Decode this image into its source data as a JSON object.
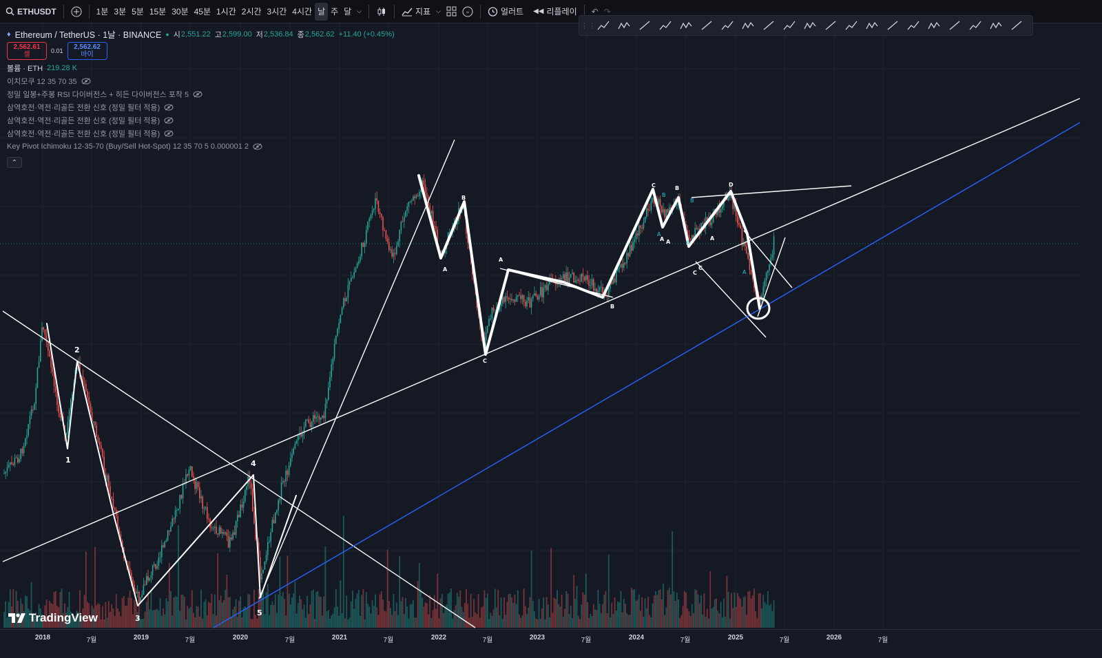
{
  "toolbar": {
    "symbol": "ETHUSDT",
    "intervals": [
      "1분",
      "3분",
      "5분",
      "15분",
      "30분",
      "45분",
      "1시간",
      "2시간",
      "3시간",
      "4시간",
      "날",
      "주",
      "달"
    ],
    "active_interval": "날",
    "indicators_label": "지표",
    "alert_label": "얼러트",
    "replay_label": "리플레이"
  },
  "legend": {
    "title": "Ethereum / TetherUS · 1날 · BINANCE",
    "open_label": "시",
    "open": "2,551.22",
    "high_label": "고",
    "high": "2,599.00",
    "low_label": "저",
    "low": "2,536.84",
    "close_label": "종",
    "close": "2,562.62",
    "change": "+11.40 (+0.45%)",
    "sell_price": "2,562.61",
    "sell_label": "셀",
    "spread": "0.01",
    "buy_price": "2,562.62",
    "buy_label": "바이",
    "volume_label": "볼륨 · ETH",
    "volume_value": "219.28 K",
    "indicators": [
      "이치모쿠 12 35 70 35",
      "정밀 일봉+주봉 RSI 다이버전스 + 히든 다이버전스 포착 5",
      "삼역호전·역전·리골든 전환 신호 (정밀 필터 적용)",
      "삼역호전·역전·리골든 전환 신호 (정밀 필터 적용)",
      "삼역호전·역전·리골든 전환 신호 (정밀 필터 적용)",
      "Key Pivot Ichimoku 12-35-70 (Buy/Sell Hot-Spot) 12 35 70 5 0.000001 2"
    ]
  },
  "brand": "TradingView",
  "x_axis": [
    "2018",
    "7월",
    "2019",
    "7월",
    "2020",
    "7월",
    "2021",
    "7월",
    "2022",
    "7월",
    "2023",
    "7월",
    "2024",
    "7월",
    "2025",
    "7월",
    "2026",
    "7월"
  ],
  "annotations": {
    "wave_labels": [
      "1",
      "2",
      "3",
      "4",
      "5"
    ],
    "abc_labels": [
      "A",
      "B",
      "C",
      "A",
      "B",
      "C",
      "A",
      "B",
      "C",
      "D"
    ],
    "small_labels": [
      "A",
      "B",
      "B",
      "A",
      "A",
      "A",
      "A",
      "C"
    ]
  },
  "colors": {
    "up": "#26a69a",
    "down": "#ef5350",
    "trendline": "#ffffff",
    "blue_line": "#2962ff",
    "bg": "#151924"
  }
}
